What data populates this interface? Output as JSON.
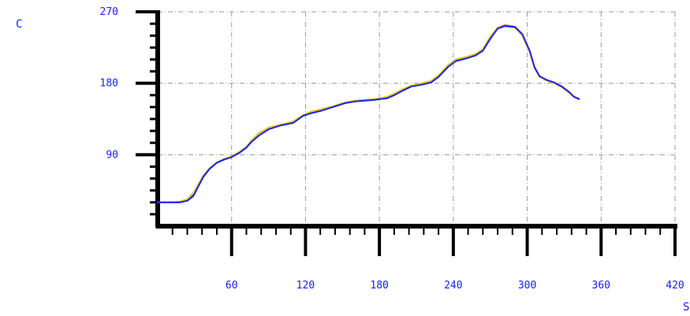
{
  "chart_data": {
    "type": "line",
    "title": "",
    "xlabel": "S",
    "ylabel": "C",
    "xlim": [
      0,
      420
    ],
    "ylim": [
      0,
      270
    ],
    "xticks": [
      60,
      120,
      180,
      240,
      300,
      360,
      420
    ],
    "yticks": [
      90,
      180,
      270
    ],
    "x_tick_labels": [
      "60",
      "120",
      "180",
      "240",
      "300",
      "360",
      "420"
    ],
    "y_tick_labels": [
      "90",
      "180",
      "270"
    ],
    "grid": true,
    "legend": "none",
    "series": [
      {
        "color": "#e01818",
        "x": [
          0,
          10,
          18,
          24,
          29,
          33,
          37,
          42,
          48,
          54,
          60,
          66,
          72,
          76,
          82,
          90,
          100,
          110,
          118,
          124,
          132,
          142,
          152,
          160,
          168,
          176,
          186,
          192,
          198,
          206,
          214,
          222,
          228,
          236,
          242,
          250,
          258,
          264,
          270,
          276,
          282,
          290,
          296,
          302,
          306,
          310,
          316,
          322,
          328,
          334,
          338,
          342
        ],
        "y": [
          30,
          30,
          30,
          33,
          40,
          52,
          63,
          72,
          80,
          84,
          88,
          93,
          100,
          107,
          117,
          124,
          128,
          131,
          140,
          143,
          146,
          150,
          155,
          158,
          159,
          160,
          162,
          166,
          171,
          177,
          179,
          182,
          189,
          203,
          209,
          212,
          216,
          222,
          238,
          250,
          253,
          251,
          241,
          220,
          200,
          188,
          184,
          180,
          176,
          168,
          163,
          161
        ]
      },
      {
        "color": "#e0c814",
        "x": [
          0,
          10,
          18,
          24,
          29,
          33,
          37,
          42,
          48,
          54,
          60,
          66,
          72,
          76,
          82,
          90,
          100,
          110,
          118,
          124,
          132,
          142,
          152,
          160,
          168,
          176,
          186,
          192,
          198,
          206,
          214,
          222,
          228,
          236,
          242,
          250,
          258,
          264,
          270,
          276,
          282,
          290,
          296,
          302,
          306,
          310,
          316,
          322,
          328,
          334,
          338,
          342
        ],
        "y": [
          30,
          30,
          31,
          34,
          42,
          53,
          64,
          73,
          80,
          85,
          88,
          93,
          100,
          108,
          117,
          124,
          128,
          132,
          140,
          144,
          147,
          151,
          156,
          158,
          159,
          160,
          163,
          167,
          172,
          177,
          180,
          183,
          190,
          203,
          210,
          213,
          217,
          223,
          239,
          250,
          252,
          250,
          240,
          219,
          199,
          188,
          183,
          180,
          175,
          168,
          163,
          161
        ]
      },
      {
        "color": "#1a20ff",
        "x": [
          0,
          10,
          18,
          24,
          29,
          33,
          37,
          42,
          48,
          54,
          60,
          66,
          72,
          76,
          82,
          90,
          100,
          110,
          118,
          124,
          132,
          142,
          152,
          160,
          168,
          176,
          186,
          192,
          198,
          206,
          214,
          222,
          228,
          236,
          242,
          250,
          258,
          264,
          270,
          276,
          282,
          290,
          296,
          302,
          306,
          310,
          316,
          322,
          328,
          334,
          338,
          342
        ],
        "y": [
          30,
          30,
          30,
          32,
          38,
          50,
          62,
          72,
          80,
          84,
          87,
          92,
          99,
          106,
          114,
          122,
          127,
          130,
          139,
          142,
          145,
          150,
          155,
          157,
          158,
          159,
          161,
          165,
          170,
          176,
          178,
          181,
          188,
          201,
          208,
          211,
          215,
          221,
          236,
          249,
          252,
          251,
          242,
          221,
          200,
          189,
          184,
          181,
          176,
          169,
          163,
          160
        ]
      }
    ]
  }
}
